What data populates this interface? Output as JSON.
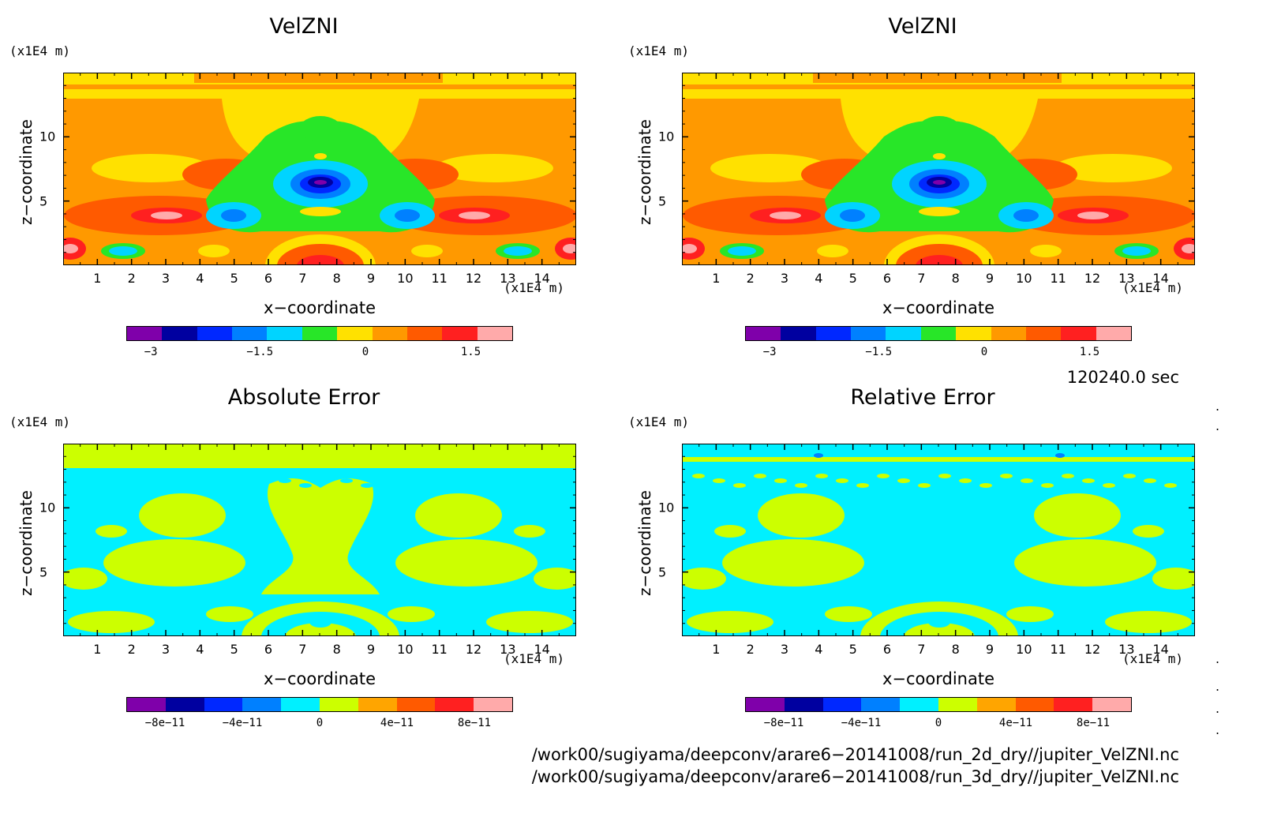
{
  "panels": [
    {
      "id": "top-left",
      "title": "VelZNI",
      "unit_z": "(x1E4 m)",
      "unit_x": "(x1E4 m)",
      "xlabel": "x−coordinate",
      "ylabel": "z−coordinate",
      "kind": "velzni",
      "colorbar": {
        "colors": [
          "#7f00aa",
          "#0000a0",
          "#0028ff",
          "#0080ff",
          "#00d4ff",
          "#28e628",
          "#ffe100",
          "#ff9900",
          "#ff5a00",
          "#ff2020",
          "#ffaaaa"
        ],
        "labels": [
          "−3",
          "−1.5",
          "0",
          "1.5"
        ]
      }
    },
    {
      "id": "top-right",
      "title": "VelZNI",
      "unit_z": "(x1E4 m)",
      "unit_x": "(x1E4 m)",
      "xlabel": "x−coordinate",
      "ylabel": "z−coordinate",
      "kind": "velzni",
      "colorbar": {
        "colors": [
          "#7f00aa",
          "#0000a0",
          "#0028ff",
          "#0080ff",
          "#00d4ff",
          "#28e628",
          "#ffe100",
          "#ff9900",
          "#ff5a00",
          "#ff2020",
          "#ffaaaa"
        ],
        "labels": [
          "−3",
          "−1.5",
          "0",
          "1.5"
        ]
      }
    },
    {
      "id": "bottom-left",
      "title": "Absolute Error",
      "unit_z": "(x1E4 m)",
      "unit_x": "(x1E4 m)",
      "xlabel": "x−coordinate",
      "ylabel": "z−coordinate",
      "kind": "abs",
      "colorbar": {
        "colors": [
          "#7f00aa",
          "#0000a0",
          "#0028ff",
          "#0080ff",
          "#00f0ff",
          "#ccff00",
          "#ffa500",
          "#ff5a00",
          "#ff2020",
          "#ffaaaa"
        ],
        "labels": [
          "−8e−11",
          "−4e−11",
          "0",
          "4e−11",
          "8e−11"
        ]
      }
    },
    {
      "id": "bottom-right",
      "title": "Relative Error",
      "unit_z": "(x1E4 m)",
      "unit_x": "(x1E4 m)",
      "xlabel": "x−coordinate",
      "ylabel": "z−coordinate",
      "kind": "rel",
      "colorbar": {
        "colors": [
          "#7f00aa",
          "#0000a0",
          "#0028ff",
          "#0080ff",
          "#00f0ff",
          "#ccff00",
          "#ffa500",
          "#ff5a00",
          "#ff2020",
          "#ffaaaa"
        ],
        "labels": [
          "−8e−11",
          "−4e−11",
          "0",
          "4e−11",
          "8e−11"
        ]
      }
    }
  ],
  "axes": {
    "x_ticks": [
      "1",
      "2",
      "3",
      "4",
      "5",
      "6",
      "7",
      "8",
      "9",
      "10",
      "11",
      "12",
      "13",
      "14"
    ],
    "y_ticks": [
      "5",
      "10"
    ]
  },
  "time_label": "120240.0 sec",
  "file_paths": [
    "/work00/sugiyama/deepconv/arare6−20141008/run_2d_dry//jupiter_VelZNI.nc",
    "/work00/sugiyama/deepconv/arare6−20141008/run_3d_dry//jupiter_VelZNI.nc"
  ],
  "chart_data": [
    {
      "type": "heatmap",
      "title": "VelZNI",
      "xlabel": "x−coordinate",
      "ylabel": "z−coordinate",
      "xlim": [
        0,
        15
      ],
      "ylim": [
        0,
        15
      ],
      "x_unit": "(x1E4 m)",
      "z_unit": "(x1E4 m)",
      "colorbar_ticks": [
        "−3",
        "−1.5",
        "0",
        "1.5"
      ]
    },
    {
      "type": "heatmap",
      "title": "VelZNI",
      "xlabel": "x−coordinate",
      "ylabel": "z−coordinate",
      "xlim": [
        0,
        15
      ],
      "ylim": [
        0,
        15
      ],
      "x_unit": "(x1E4 m)",
      "z_unit": "(x1E4 m)",
      "colorbar_ticks": [
        "−3",
        "−1.5",
        "0",
        "1.5"
      ]
    },
    {
      "type": "heatmap",
      "title": "Absolute Error",
      "xlabel": "x−coordinate",
      "ylabel": "z−coordinate",
      "xlim": [
        0,
        15
      ],
      "ylim": [
        0,
        15
      ],
      "x_unit": "(x1E4 m)",
      "z_unit": "(x1E4 m)",
      "colorbar_ticks": [
        "−8e−11",
        "−4e−11",
        "0",
        "4e−11",
        "8e−11"
      ]
    },
    {
      "type": "heatmap",
      "title": "Relative Error",
      "xlabel": "x−coordinate",
      "ylabel": "z−coordinate",
      "xlim": [
        0,
        15
      ],
      "ylim": [
        0,
        15
      ],
      "x_unit": "(x1E4 m)",
      "z_unit": "(x1E4 m)",
      "colorbar_ticks": [
        "−8e−11",
        "−4e−11",
        "0",
        "4e−11",
        "8e−11"
      ]
    }
  ]
}
